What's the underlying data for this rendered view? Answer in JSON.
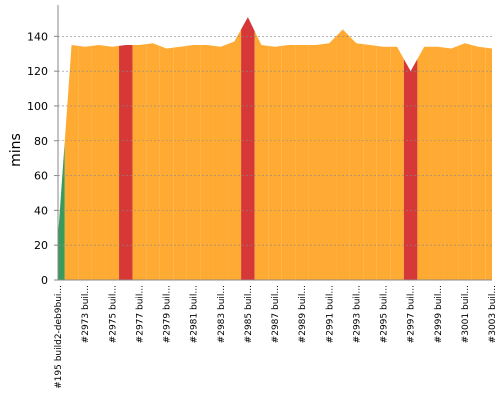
{
  "chart_data": {
    "type": "area",
    "y_label": "mins",
    "categories": [
      "#195 build2-deb9bui...",
      null,
      "#2973 buil...",
      null,
      "#2975 buil...",
      null,
      "#2977 buil...",
      null,
      "#2979 buil...",
      null,
      "#2981 buil...",
      null,
      "#2983 buil...",
      null,
      "#2985 buil...",
      null,
      "#2987 buil...",
      null,
      "#2989 buil...",
      null,
      "#2991 buil...",
      null,
      "#2993 buil...",
      null,
      "#2995 buil...",
      null,
      "#2997 buil...",
      null,
      "#2999 buil...",
      null,
      "#3001 buil...",
      null,
      "#3003 buil..."
    ],
    "values": [
      25,
      135,
      134,
      135,
      134,
      135,
      135,
      136,
      133,
      134,
      135,
      135,
      134,
      137,
      151,
      135,
      134,
      135,
      135,
      135,
      136,
      144,
      136,
      135,
      134,
      134,
      120,
      134,
      134,
      133,
      136,
      134,
      133
    ],
    "point_colors": [
      "#3a9a5b",
      "#ffab33",
      "#ffab33",
      "#ffab33",
      "#ffab33",
      "#d63838",
      "#ffab33",
      "#ffab33",
      "#ffab33",
      "#ffab33",
      "#ffab33",
      "#ffab33",
      "#ffab33",
      "#ffab33",
      "#d63838",
      "#ffab33",
      "#ffab33",
      "#ffab33",
      "#ffab33",
      "#ffab33",
      "#ffab33",
      "#ffab33",
      "#ffab33",
      "#ffab33",
      "#ffab33",
      "#ffab33",
      "#d63838",
      "#ffab33",
      "#ffab33",
      "#ffab33",
      "#ffab33",
      "#ffab33",
      "#ffab33"
    ],
    "ylim": [
      0,
      158
    ],
    "yticks": [
      0,
      20,
      40,
      60,
      80,
      100,
      120,
      140
    ],
    "grid": true
  }
}
